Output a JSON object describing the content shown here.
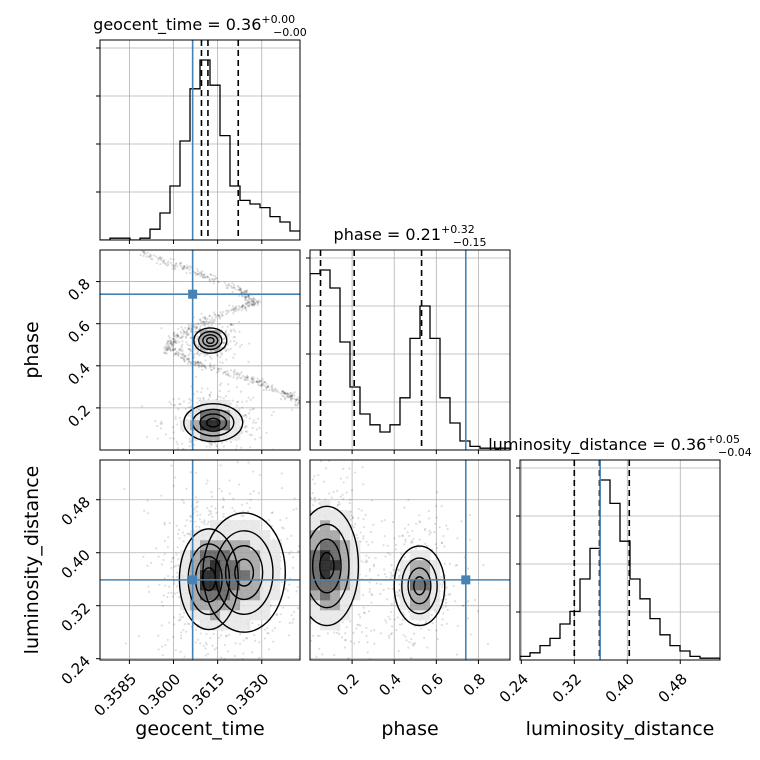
{
  "chart_data": {
    "type": "corner",
    "grid": true,
    "truth_color": "#4682b4",
    "hist_color": "#000000",
    "parameters": [
      {
        "name": "geocent_time",
        "label": "geocent_time",
        "title": "geocent_time = 0.36",
        "title_sup": "+0.00",
        "title_sub": "−0.00",
        "range": [
          0.3575,
          0.3643
        ],
        "ticks": [
          0.3585,
          0.36,
          0.3615,
          0.363
        ],
        "tick_labels": [
          "0.3585",
          "0.3600",
          "0.3615",
          "0.3630"
        ],
        "quantiles": [
          0.36095,
          0.36117,
          0.3622
        ],
        "truth": 0.36065,
        "hist": [
          0,
          0.01,
          0.01,
          0,
          0.01,
          0.06,
          0.15,
          0.3,
          0.55,
          0.84,
          1.0,
          0.86,
          0.58,
          0.3,
          0.22,
          0.2,
          0.18,
          0.13,
          0.1,
          0.05
        ]
      },
      {
        "name": "phase",
        "label": "phase",
        "title": "phase = 0.21",
        "title_sup": "+0.32",
        "title_sub": "−0.15",
        "range": [
          0.0,
          0.95
        ],
        "ticks": [
          0.2,
          0.4,
          0.6,
          0.8
        ],
        "tick_labels": [
          "0.2",
          "0.4",
          "0.6",
          "0.8"
        ],
        "quantiles": [
          0.05,
          0.21,
          0.53
        ],
        "truth": 0.74,
        "hist": [
          0.98,
          1.0,
          0.9,
          0.6,
          0.35,
          0.2,
          0.14,
          0.1,
          0.14,
          0.29,
          0.62,
          0.8,
          0.62,
          0.29,
          0.15,
          0.05,
          0.02,
          0.01,
          0.01,
          0.01
        ]
      },
      {
        "name": "luminosity_distance",
        "label": "luminosity_distance",
        "title": "luminosity_distance = 0.36",
        "title_sup": "+0.05",
        "title_sub": "−0.04",
        "range": [
          0.238,
          0.54
        ],
        "ticks": [
          0.24,
          0.32,
          0.4,
          0.48
        ],
        "tick_labels": [
          "0.24",
          "0.32",
          "0.40",
          "0.48"
        ],
        "quantiles": [
          0.32,
          0.358,
          0.403
        ],
        "truth": 0.359,
        "hist": [
          0.02,
          0.04,
          0.08,
          0.12,
          0.2,
          0.27,
          0.45,
          0.62,
          1.0,
          0.87,
          0.66,
          0.45,
          0.34,
          0.23,
          0.14,
          0.08,
          0.05,
          0.02,
          0.01,
          0.01
        ]
      }
    ],
    "pairs": [
      {
        "x": "geocent_time",
        "y": "phase",
        "clusters": [
          {
            "mx": 0.36125,
            "my": 0.52,
            "sx": 0.00028,
            "sy": 0.03,
            "w": 0.3
          },
          {
            "mx": 0.36135,
            "my": 0.13,
            "sx": 0.0005,
            "sy": 0.045,
            "w": 0.45
          }
        ],
        "curve": [
          [
            0.3588,
            0.94
          ],
          [
            0.3605,
            0.86
          ],
          [
            0.3622,
            0.76
          ],
          [
            0.3628,
            0.7
          ],
          [
            0.3615,
            0.64
          ],
          [
            0.3602,
            0.55
          ],
          [
            0.3598,
            0.48
          ],
          [
            0.3608,
            0.41
          ],
          [
            0.3625,
            0.34
          ],
          [
            0.3638,
            0.27
          ],
          [
            0.3643,
            0.22
          ]
        ]
      },
      {
        "x": "geocent_time",
        "y": "luminosity_distance",
        "clusters": [
          {
            "mx": 0.3612,
            "my": 0.36,
            "sx": 0.0005,
            "sy": 0.038,
            "w": 0.6
          },
          {
            "mx": 0.3624,
            "my": 0.37,
            "sx": 0.0007,
            "sy": 0.045,
            "w": 0.4
          }
        ]
      },
      {
        "x": "phase",
        "y": "luminosity_distance",
        "clusters": [
          {
            "mx": 0.08,
            "my": 0.38,
            "sx": 0.075,
            "sy": 0.045,
            "w": 0.6
          },
          {
            "mx": 0.52,
            "my": 0.35,
            "sx": 0.06,
            "sy": 0.03,
            "w": 0.4
          }
        ]
      }
    ]
  }
}
